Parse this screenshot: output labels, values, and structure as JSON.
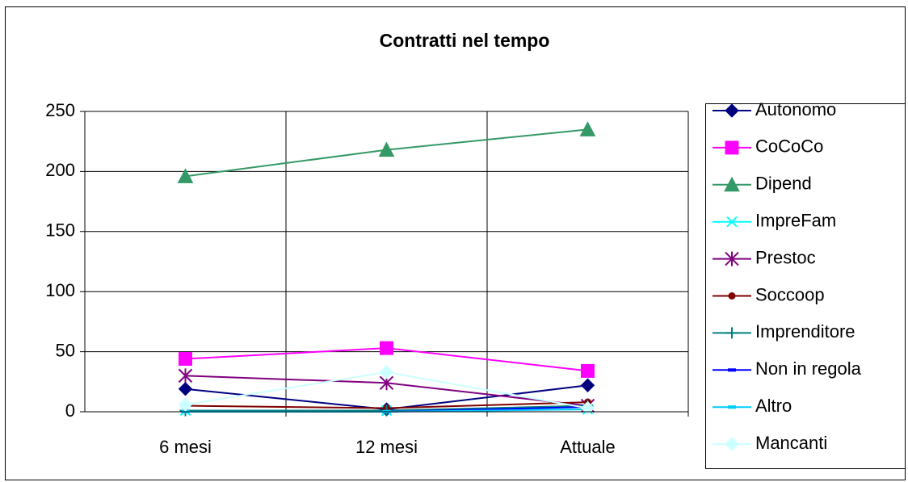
{
  "chart_data": {
    "type": "line",
    "title": "Contratti nel tempo",
    "categories": [
      "6 mesi",
      "12 mesi",
      "Attuale"
    ],
    "ylim": [
      0,
      250
    ],
    "yticks": [
      0,
      50,
      100,
      150,
      200,
      250
    ],
    "grid": true,
    "legend": "right",
    "series": [
      {
        "name": "Autonomo",
        "color": "#000080",
        "marker": "diamond",
        "values": [
          19,
          2,
          22
        ]
      },
      {
        "name": "CoCoCo",
        "color": "#FF00FF",
        "marker": "square",
        "values": [
          44,
          53,
          34
        ]
      },
      {
        "name": "Dipend",
        "color": "#339966",
        "marker": "triangle",
        "values": [
          196,
          218,
          235
        ]
      },
      {
        "name": "ImpreFam",
        "color": "#00FFFF",
        "marker": "x",
        "values": [
          1,
          1,
          2
        ]
      },
      {
        "name": "Prestoc",
        "color": "#800080",
        "marker": "star",
        "values": [
          30,
          24,
          5
        ]
      },
      {
        "name": "Soccoop",
        "color": "#800000",
        "marker": "circle",
        "values": [
          5,
          3,
          8
        ]
      },
      {
        "name": "Imprenditore",
        "color": "#008080",
        "marker": "plus",
        "values": [
          1,
          1,
          5
        ]
      },
      {
        "name": "Non in regola",
        "color": "#0000FF",
        "marker": "dash",
        "values": [
          0,
          0,
          4
        ]
      },
      {
        "name": "Altro",
        "color": "#00CCFF",
        "marker": "dash",
        "values": [
          0,
          0,
          2
        ]
      },
      {
        "name": "Mancanti",
        "color": "#CCFFFF",
        "marker": "diamond",
        "values": [
          6,
          33,
          3
        ]
      }
    ]
  }
}
